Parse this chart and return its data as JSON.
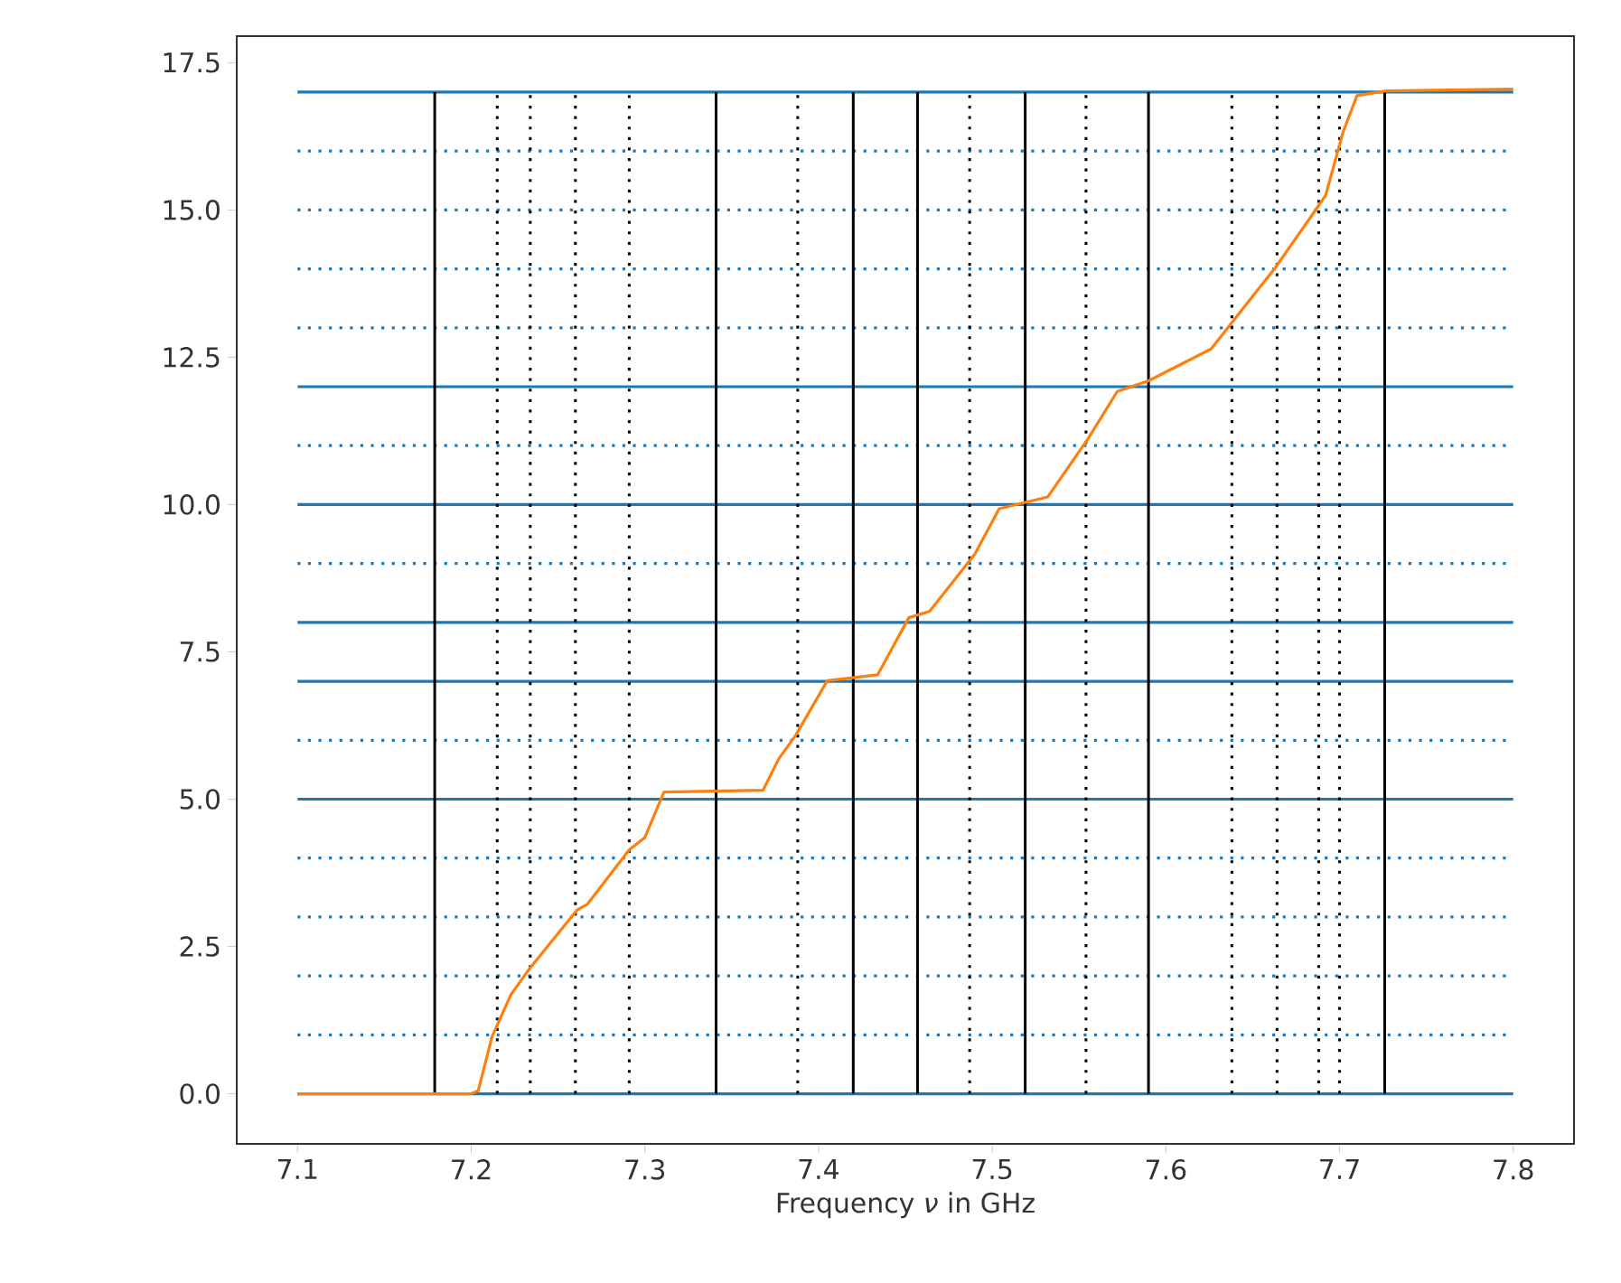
{
  "chart_data": {
    "type": "line",
    "xlabel": "Frequency *ν* in GHz",
    "xlim": [
      7.065,
      7.835
    ],
    "ylim": [
      -0.85,
      17.95
    ],
    "xticks": [
      7.1,
      7.2,
      7.3,
      7.4,
      7.5,
      7.6,
      7.7,
      7.8
    ],
    "yticks": [
      {
        "value": 0,
        "label": "0.0"
      },
      {
        "value": 2.5,
        "label": "2.5"
      },
      {
        "value": 5,
        "label": "5.0"
      },
      {
        "value": 7.5,
        "label": "7.5"
      },
      {
        "value": 10,
        "label": "10.0"
      },
      {
        "value": 12.5,
        "label": "12.5"
      },
      {
        "value": 15,
        "label": "15.0"
      },
      {
        "value": 17.5,
        "label": "17.5"
      }
    ],
    "series": [
      {
        "color": "#ff7f0e",
        "x": [
          7.1,
          7.2,
          7.204,
          7.212,
          7.223,
          7.233,
          7.247,
          7.261,
          7.267,
          7.291,
          7.3,
          7.311,
          7.368,
          7.377,
          7.387,
          7.405,
          7.434,
          7.452,
          7.464,
          7.49,
          7.504,
          7.532,
          7.555,
          7.572,
          7.59,
          7.626,
          7.637,
          7.663,
          7.686,
          7.692,
          7.702,
          7.71,
          7.727,
          7.8
        ],
        "values": [
          0,
          0,
          0.05,
          0.97,
          1.69,
          2.1,
          2.61,
          3.12,
          3.22,
          4.14,
          4.35,
          5.12,
          5.15,
          5.68,
          6.09,
          7.01,
          7.11,
          8.08,
          8.19,
          9.16,
          9.93,
          10.13,
          11.11,
          11.92,
          12.1,
          12.64,
          13.05,
          14.02,
          14.99,
          15.25,
          16.32,
          16.94,
          17.02,
          17.05
        ]
      }
    ],
    "ref_lines": [
      {
        "axis": "y",
        "value": 0,
        "color": "#1f77b4",
        "line_style": "solid"
      },
      {
        "axis": "y",
        "value": 1,
        "color": "#1f77b4",
        "line_style": "dotted"
      },
      {
        "axis": "y",
        "value": 2,
        "color": "#1f77b4",
        "line_style": "dotted"
      },
      {
        "axis": "y",
        "value": 3,
        "color": "#1f77b4",
        "line_style": "dotted"
      },
      {
        "axis": "y",
        "value": 4,
        "color": "#1f77b4",
        "line_style": "dotted"
      },
      {
        "axis": "y",
        "value": 5,
        "color": "#1f77b4",
        "line_style": "solid"
      },
      {
        "axis": "y",
        "value": 6,
        "color": "#1f77b4",
        "line_style": "dotted"
      },
      {
        "axis": "y",
        "value": 7,
        "color": "#1f77b4",
        "line_style": "solid"
      },
      {
        "axis": "y",
        "value": 8,
        "color": "#1f77b4",
        "line_style": "solid"
      },
      {
        "axis": "y",
        "value": 9,
        "color": "#1f77b4",
        "line_style": "dotted"
      },
      {
        "axis": "y",
        "value": 10,
        "color": "#1f77b4",
        "line_style": "solid"
      },
      {
        "axis": "y",
        "value": 11,
        "color": "#1f77b4",
        "line_style": "dotted"
      },
      {
        "axis": "y",
        "value": 12,
        "color": "#1f77b4",
        "line_style": "solid"
      },
      {
        "axis": "y",
        "value": 13,
        "color": "#1f77b4",
        "line_style": "dotted"
      },
      {
        "axis": "y",
        "value": 14,
        "color": "#1f77b4",
        "line_style": "dotted"
      },
      {
        "axis": "y",
        "value": 15,
        "color": "#1f77b4",
        "line_style": "dotted"
      },
      {
        "axis": "y",
        "value": 16,
        "color": "#1f77b4",
        "line_style": "dotted"
      },
      {
        "axis": "y",
        "value": 17,
        "color": "#1f77b4",
        "line_style": "solid"
      },
      {
        "axis": "x",
        "value": 7.179,
        "color": "#000000",
        "line_style": "solid"
      },
      {
        "axis": "x",
        "value": 7.215,
        "color": "#000000",
        "line_style": "dotted"
      },
      {
        "axis": "x",
        "value": 7.234,
        "color": "#000000",
        "line_style": "dotted"
      },
      {
        "axis": "x",
        "value": 7.26,
        "color": "#000000",
        "line_style": "dotted"
      },
      {
        "axis": "x",
        "value": 7.291,
        "color": "#000000",
        "line_style": "dotted"
      },
      {
        "axis": "x",
        "value": 7.341,
        "color": "#000000",
        "line_style": "solid"
      },
      {
        "axis": "x",
        "value": 7.388,
        "color": "#000000",
        "line_style": "dotted"
      },
      {
        "axis": "x",
        "value": 7.42,
        "color": "#000000",
        "line_style": "solid"
      },
      {
        "axis": "x",
        "value": 7.457,
        "color": "#000000",
        "line_style": "solid"
      },
      {
        "axis": "x",
        "value": 7.487,
        "color": "#000000",
        "line_style": "dotted"
      },
      {
        "axis": "x",
        "value": 7.519,
        "color": "#000000",
        "line_style": "solid"
      },
      {
        "axis": "x",
        "value": 7.554,
        "color": "#000000",
        "line_style": "dotted"
      },
      {
        "axis": "x",
        "value": 7.59,
        "color": "#000000",
        "line_style": "solid"
      },
      {
        "axis": "x",
        "value": 7.638,
        "color": "#000000",
        "line_style": "dotted"
      },
      {
        "axis": "x",
        "value": 7.664,
        "color": "#000000",
        "line_style": "dotted"
      },
      {
        "axis": "x",
        "value": 7.688,
        "color": "#000000",
        "line_style": "dotted"
      },
      {
        "axis": "x",
        "value": 7.7,
        "color": "#000000",
        "line_style": "dotted"
      },
      {
        "axis": "x",
        "value": 7.726,
        "color": "#000000",
        "line_style": "solid"
      }
    ]
  }
}
